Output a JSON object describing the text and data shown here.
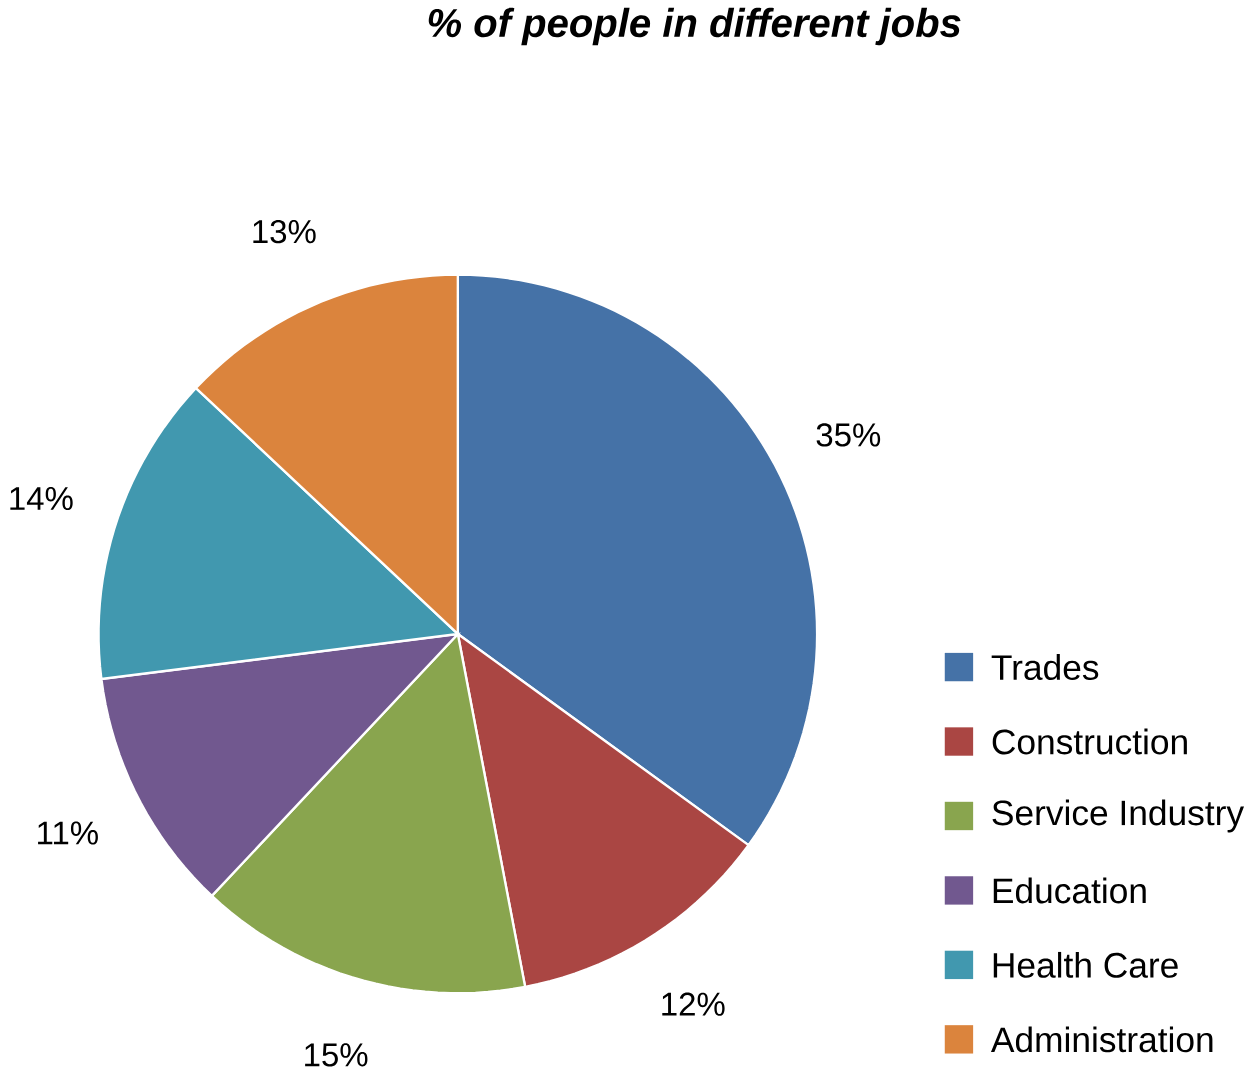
{
  "chart_data": {
    "type": "pie",
    "title": "% of people in different jobs",
    "categories": [
      "Trades",
      "Construction",
      "Service Industry",
      "Education",
      "Health Care",
      "Administration"
    ],
    "values": [
      35,
      12,
      15,
      11,
      14,
      13
    ],
    "colors": [
      "#4572a7",
      "#aa4643",
      "#89a54e",
      "#71588f",
      "#4198af",
      "#db843d"
    ],
    "value_labels": [
      "35%",
      "12%",
      "15%",
      "11%",
      "14%",
      "13%"
    ],
    "legend": "bottom right"
  }
}
